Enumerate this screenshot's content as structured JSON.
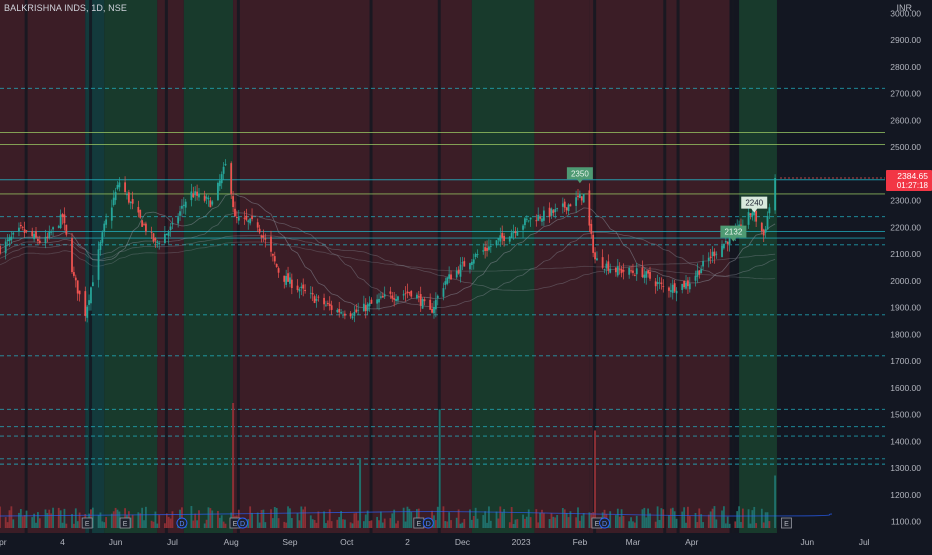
{
  "header": {
    "symbol_line": "BALKRISHNA INDS, 1D, NSE",
    "currency": "INR"
  },
  "price_tag": {
    "price": "2384.65",
    "countdown": "01:27:18",
    "color": "#f23645"
  },
  "colors": {
    "background": "#131722",
    "up": "#26a69a",
    "down": "#ef5350",
    "vol_up": "#1f6f6a",
    "vol_down": "#8c2f35",
    "band_red": "#3b1d26",
    "band_green": "#183a2c",
    "band_teal": "#133a3c",
    "band_dark": "#141620",
    "cyan_line": "#22c3d6",
    "green_line": "#9ccc65",
    "label_green": "#4e9a73",
    "label_light": "#d9e9dd"
  },
  "chart_data": {
    "type": "candlestick",
    "title": "BALKRISHNA INDS, 1D, NSE",
    "xlabel": "",
    "ylabel": "INR",
    "ylim": [
      1050,
      3050
    ],
    "x_range": [
      "2022-04-01",
      "2023-07-12"
    ],
    "yticks": [
      1100,
      1200,
      1300,
      1400,
      1500,
      1600,
      1700,
      1800,
      1900,
      2000,
      2100,
      2200,
      2300,
      2400,
      2500,
      2600,
      2700,
      2800,
      2900,
      3000
    ],
    "x_tick_labels": [
      {
        "date": "2022-04-01",
        "label": "Apr"
      },
      {
        "date": "2022-05-04",
        "label": "4"
      },
      {
        "date": "2022-06-01",
        "label": "Jun"
      },
      {
        "date": "2022-07-01",
        "label": "Jul"
      },
      {
        "date": "2022-08-01",
        "label": "Aug"
      },
      {
        "date": "2022-09-01",
        "label": "Sep"
      },
      {
        "date": "2022-10-01",
        "label": "Oct"
      },
      {
        "date": "2022-11-02",
        "label": "2"
      },
      {
        "date": "2022-12-01",
        "label": "Dec"
      },
      {
        "date": "2023-01-01",
        "label": "2023"
      },
      {
        "date": "2023-02-01",
        "label": "Feb"
      },
      {
        "date": "2023-03-01",
        "label": "Mar"
      },
      {
        "date": "2023-04-01",
        "label": "Apr"
      },
      {
        "date": "2023-06-01",
        "label": "Jun"
      },
      {
        "date": "2023-07-01",
        "label": "Jul"
      }
    ],
    "price_path": [
      [
        "2022-04-01",
        2120
      ],
      [
        "2022-04-12",
        2190
      ],
      [
        "2022-04-24",
        2140
      ],
      [
        "2022-05-04",
        2240
      ],
      [
        "2022-05-10",
        2010
      ],
      [
        "2022-05-16",
        1880
      ],
      [
        "2022-05-26",
        2200
      ],
      [
        "2022-06-03",
        2370
      ],
      [
        "2022-06-12",
        2250
      ],
      [
        "2022-06-22",
        2140
      ],
      [
        "2022-07-01",
        2200
      ],
      [
        "2022-07-10",
        2330
      ],
      [
        "2022-07-22",
        2290
      ],
      [
        "2022-07-30",
        2450
      ],
      [
        "2022-08-03",
        2230
      ],
      [
        "2022-08-15",
        2210
      ],
      [
        "2022-08-27",
        2020
      ],
      [
        "2022-09-10",
        1950
      ],
      [
        "2022-09-25",
        1890
      ],
      [
        "2022-10-05",
        1880
      ],
      [
        "2022-10-22",
        1940
      ],
      [
        "2022-11-05",
        1960
      ],
      [
        "2022-11-14",
        1880
      ],
      [
        "2022-11-22",
        2000
      ],
      [
        "2022-12-05",
        2080
      ],
      [
        "2022-12-18",
        2140
      ],
      [
        "2023-01-05",
        2230
      ],
      [
        "2023-01-20",
        2260
      ],
      [
        "2023-02-03",
        2320
      ],
      [
        "2023-02-09",
        2080
      ],
      [
        "2023-02-20",
        2040
      ],
      [
        "2023-03-06",
        2030
      ],
      [
        "2023-03-18",
        1970
      ],
      [
        "2023-03-30",
        1990
      ],
      [
        "2023-04-12",
        2100
      ],
      [
        "2023-04-27",
        2200
      ],
      [
        "2023-05-03",
        2260
      ],
      [
        "2023-05-09",
        2170
      ],
      [
        "2023-05-15",
        2384.65
      ]
    ],
    "volume_spikes": [
      {
        "date": "2022-08-02",
        "value": 1,
        "dir": "down"
      },
      {
        "date": "2022-10-08",
        "value": 0.55,
        "dir": "up"
      },
      {
        "date": "2022-11-19",
        "value": 0.95,
        "dir": "up"
      },
      {
        "date": "2023-02-09",
        "value": 0.78,
        "dir": "down"
      },
      {
        "date": "2023-05-15",
        "value": 0.42,
        "dir": "up"
      }
    ],
    "horizontal_levels": [
      {
        "value": 2720,
        "style": "dashed",
        "color": "cyan"
      },
      {
        "value": 2555,
        "style": "solid",
        "color": "green"
      },
      {
        "value": 2510,
        "style": "solid",
        "color": "green"
      },
      {
        "value": 2378,
        "style": "solid",
        "color": "cyan"
      },
      {
        "value": 2325,
        "style": "solid",
        "color": "green"
      },
      {
        "value": 2240,
        "style": "dashed",
        "color": "cyan"
      },
      {
        "value": 2185,
        "style": "solid",
        "color": "cyan"
      },
      {
        "value": 2160,
        "style": "solid",
        "color": "cyan"
      },
      {
        "value": 2135,
        "style": "dashed",
        "color": "cyan"
      },
      {
        "value": 1873,
        "style": "dashed",
        "color": "cyan"
      },
      {
        "value": 1720,
        "style": "dashed",
        "color": "cyan"
      },
      {
        "value": 1520,
        "style": "dashed",
        "color": "cyan"
      },
      {
        "value": 1455,
        "style": "dashed",
        "color": "cyan"
      },
      {
        "value": 1420,
        "style": "dashed",
        "color": "cyan"
      },
      {
        "value": 1335,
        "style": "dashed",
        "color": "cyan"
      },
      {
        "value": 1315,
        "style": "dashed",
        "color": "cyan"
      }
    ],
    "background_bands": [
      {
        "from": "2022-04-01",
        "to": "2022-05-16",
        "color": "red"
      },
      {
        "from": "2022-05-16",
        "to": "2022-05-26",
        "color": "teal"
      },
      {
        "from": "2022-05-26",
        "to": "2022-06-23",
        "color": "green"
      },
      {
        "from": "2022-06-23",
        "to": "2022-07-07",
        "color": "red"
      },
      {
        "from": "2022-07-07",
        "to": "2022-08-02",
        "color": "green"
      },
      {
        "from": "2022-08-02",
        "to": "2022-12-06",
        "color": "red"
      },
      {
        "from": "2022-12-06",
        "to": "2023-01-08",
        "color": "green"
      },
      {
        "from": "2023-01-08",
        "to": "2023-02-06",
        "color": "red"
      },
      {
        "from": "2023-02-06",
        "to": "2023-04-21",
        "color": "red"
      },
      {
        "from": "2023-04-21",
        "to": "2023-04-26",
        "color": "dark"
      },
      {
        "from": "2023-04-26",
        "to": "2023-05-16",
        "color": "green"
      }
    ],
    "price_labels": [
      {
        "text": "2350",
        "date": "2023-02-01",
        "value": 2350,
        "style": "green"
      },
      {
        "text": "2132",
        "date": "2023-04-23",
        "value": 2132,
        "style": "green"
      },
      {
        "text": "2240",
        "date": "2023-05-04",
        "value": 2240,
        "style": "light"
      }
    ],
    "event_markers": [
      {
        "date": "2022-05-17",
        "letter": "E"
      },
      {
        "date": "2022-06-06",
        "letter": "E"
      },
      {
        "date": "2022-07-06",
        "letter": "D"
      },
      {
        "date": "2022-08-03",
        "letter": "E"
      },
      {
        "date": "2022-08-07",
        "letter": "D"
      },
      {
        "date": "2022-11-08",
        "letter": "E"
      },
      {
        "date": "2022-11-13",
        "letter": "D"
      },
      {
        "date": "2023-02-10",
        "letter": "E"
      },
      {
        "date": "2023-02-14",
        "letter": "D"
      },
      {
        "date": "2023-05-21",
        "letter": "E"
      }
    ],
    "grid": false
  }
}
